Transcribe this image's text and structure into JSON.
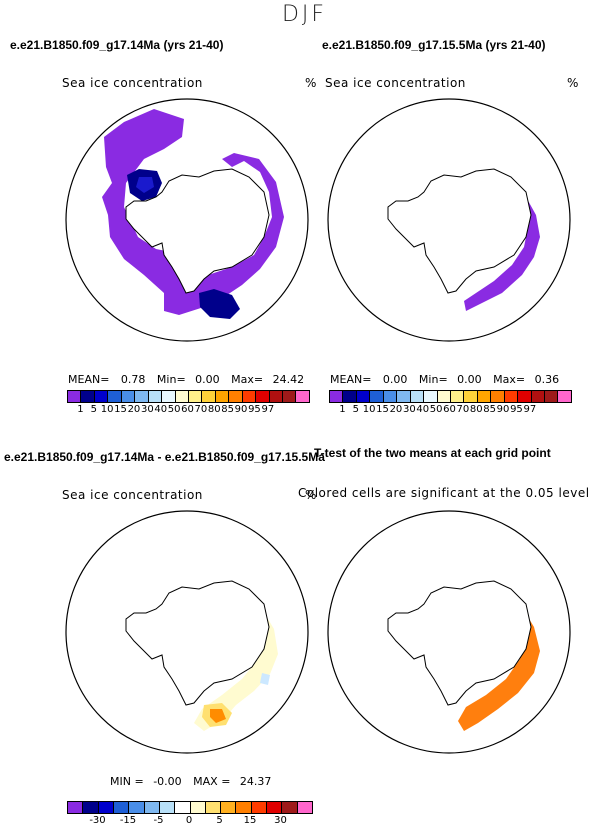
{
  "header": {
    "title": "DJF"
  },
  "panels": {
    "top_left": {
      "title": "e.e21.B1850.f09_g17.14Ma (yrs 21-40)",
      "variable": "Sea ice concentration",
      "unit": "%"
    },
    "top_right": {
      "title": "e.e21.B1850.f09_g17.15.5Ma (yrs 21-40)",
      "variable": "Sea ice concentration",
      "unit": "%"
    },
    "bottom_left": {
      "title": "e.e21.B1850.f09_g17.14Ma - e.e21.B1850.f09_g17.15.5Ma",
      "variable": "Sea ice concentration",
      "unit": "%"
    },
    "bottom_right": {
      "title": "T-test of the two means at each grid point",
      "subtitle": "Colored cells are significant at the 0.05 level"
    }
  },
  "stats": {
    "left": {
      "mean_label": "MEAN=",
      "mean": "0.78",
      "min_label": "Min=",
      "min": "0.00",
      "max_label": "Max=",
      "max": "24.42"
    },
    "right": {
      "mean_label": "MEAN=",
      "mean": "0.00",
      "min_label": "Min=",
      "min": "0.00",
      "max_label": "Max=",
      "max": "0.36"
    },
    "diff": {
      "min_label": "MIN =",
      "min": "-0.00",
      "max_label": "MAX =",
      "max": "24.37"
    }
  },
  "colorbars": {
    "concentration": {
      "colors": [
        "#8a2be2",
        "#00008b",
        "#0000cd",
        "#1e5fd6",
        "#4a8ee8",
        "#7fb8f0",
        "#b8e0f8",
        "#e8f8ff",
        "#fffbd0",
        "#fff08a",
        "#ffd23a",
        "#ffa500",
        "#ff7f00",
        "#ff3c00",
        "#e00000",
        "#b01010",
        "#9e1a1a",
        "#ff66cc"
      ],
      "ticks": [
        "1",
        "5",
        "10",
        "15",
        "20",
        "30",
        "40",
        "50",
        "60",
        "70",
        "80",
        "85",
        "90",
        "95",
        "97"
      ]
    },
    "difference": {
      "colors": [
        "#8a2be2",
        "#00008b",
        "#0000cd",
        "#1e5fd6",
        "#4a8ee8",
        "#7fb8f0",
        "#b8e0f8",
        "#ffffff",
        "#fffbd0",
        "#ffe070",
        "#ffb020",
        "#ff7f00",
        "#ff3c00",
        "#e00000",
        "#9e1a1a",
        "#ff66cc"
      ],
      "ticks": [
        "-30",
        "-15",
        "-5",
        "0",
        "5",
        "15",
        "30"
      ]
    }
  },
  "map_colors": {
    "purple": "#8a2be2",
    "navy": "#00008b",
    "blue": "#1a1acd",
    "orange": "#ff7f0e",
    "yellow_light": "#fffbd0",
    "yellow": "#ffe070",
    "orange_dark": "#ff8c00",
    "light_blue": "#cce8ff"
  }
}
